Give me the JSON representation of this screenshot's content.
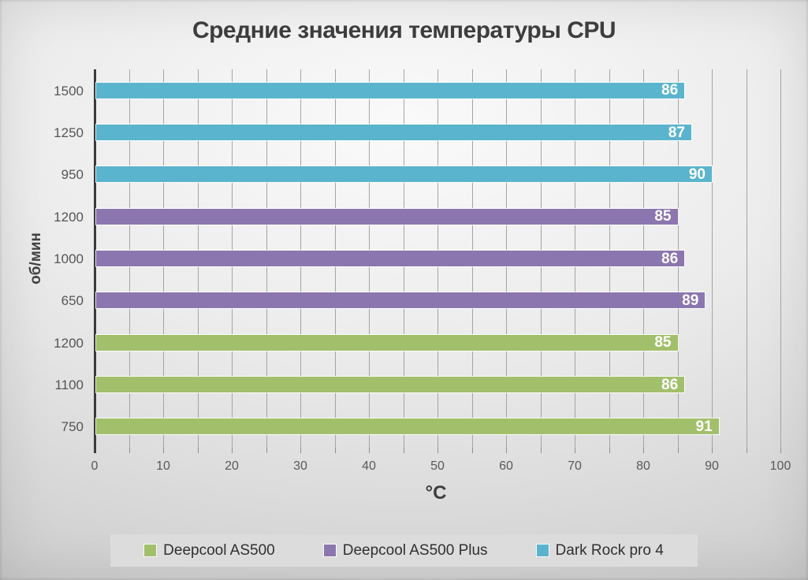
{
  "title": "Средние значения температуры CPU",
  "chart_data": {
    "type": "bar",
    "orientation": "horizontal",
    "title": "Средние значения температуры CPU",
    "xlabel": "°C",
    "ylabel": "об/мин",
    "xlim": [
      0,
      100
    ],
    "x_major_tick": 10,
    "x_minor_tick": 5,
    "x_tick_labels": [
      "0",
      "10",
      "20",
      "30",
      "40",
      "50",
      "60",
      "70",
      "80",
      "90",
      "100"
    ],
    "grid": "vertical",
    "bar_value_labels": "inside-end",
    "series": [
      {
        "name": "Dark Rock pro 4",
        "color": "#5bb4cd",
        "points": [
          {
            "category": "1500",
            "value": 86
          },
          {
            "category": "1250",
            "value": 87
          },
          {
            "category": "950",
            "value": 90
          }
        ]
      },
      {
        "name": "Deepcool AS500 Plus",
        "color": "#8c76af",
        "points": [
          {
            "category": "1200",
            "value": 85
          },
          {
            "category": "1000",
            "value": 86
          },
          {
            "category": "650",
            "value": 89
          }
        ]
      },
      {
        "name": "Deepcool AS500",
        "color": "#a2c06c",
        "points": [
          {
            "category": "1200",
            "value": 85
          },
          {
            "category": "1100",
            "value": 86
          },
          {
            "category": "750",
            "value": 91
          }
        ]
      }
    ],
    "legend_position": "bottom",
    "legend": [
      {
        "label": "Deepcool AS500",
        "color": "#a2c06c"
      },
      {
        "label": "Deepcool AS500 Plus",
        "color": "#8c76af"
      },
      {
        "label": "Dark Rock pro 4",
        "color": "#5bb4cd"
      }
    ]
  }
}
